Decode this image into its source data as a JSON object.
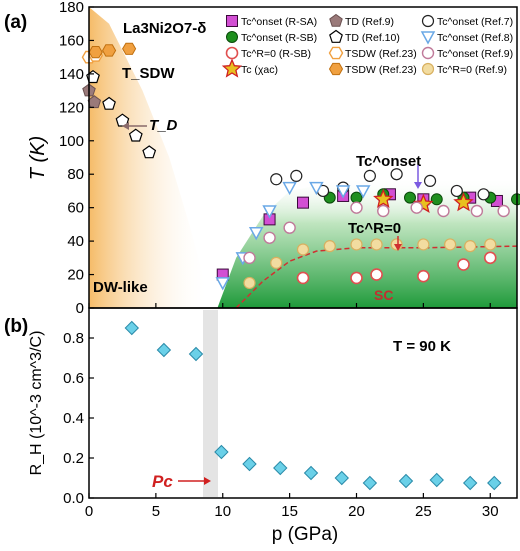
{
  "chart_data": [
    {
      "panel": "(a)",
      "type": "scatter",
      "title": "",
      "compound": "La3Ni2O7-δ",
      "xlabel": "",
      "ylabel": "T (K)",
      "xlim": [
        0,
        32
      ],
      "ylim": [
        0,
        180
      ],
      "yticks": [
        0,
        20,
        40,
        60,
        80,
        100,
        120,
        140,
        160,
        180
      ],
      "xticks": [
        0,
        5,
        10,
        15,
        20,
        25,
        30
      ],
      "legend_position": "top-right",
      "phase_labels": {
        "sdw": "T_SDW",
        "d": "T_D",
        "dw": "DW-like",
        "tc_onset": "Tc^onset",
        "tc_r0": "Tc^R=0",
        "sc": "SC"
      },
      "series": [
        {
          "name": "Tc^onset (R-SA)",
          "marker": "square",
          "color": "#d24fd3",
          "x": [
            10,
            13.5,
            16,
            19,
            22.5,
            25,
            28.5,
            30.5
          ],
          "y": [
            20,
            53,
            63,
            67,
            68,
            65,
            66,
            64
          ]
        },
        {
          "name": "Tc^onset (R-SB)",
          "marker": "dot",
          "color": "#1e8f1e",
          "x": [
            18,
            20,
            22,
            24,
            26,
            28,
            30,
            32
          ],
          "y": [
            66,
            66,
            68,
            66,
            65,
            66,
            66,
            65
          ]
        },
        {
          "name": "Tc^R=0 (R-SB)",
          "marker": "circle-red",
          "color": "#e05050",
          "x": [
            16,
            20,
            21.5,
            25,
            28,
            30
          ],
          "y": [
            18,
            18,
            20,
            19,
            26,
            30
          ]
        },
        {
          "name": "Tc (χac)",
          "marker": "star",
          "color": "#e8c020",
          "x": [
            22,
            25,
            28
          ],
          "y": [
            65,
            62,
            63
          ]
        },
        {
          "name": "TD (Ref.9)",
          "marker": "pentagon-filled",
          "color": "#9a7a7a",
          "x": [
            0,
            0.4
          ],
          "y": [
            130,
            123
          ]
        },
        {
          "name": "TD (Ref.10)",
          "marker": "pentagon-open",
          "color": "#000000",
          "x": [
            0.3,
            1.5,
            2.5,
            3.5,
            4.5
          ],
          "y": [
            138,
            122,
            112,
            103,
            93
          ]
        },
        {
          "name": "TSDW (Ref.23)",
          "marker": "hexagon-open",
          "color": "#f0a040",
          "x": [
            0,
            0.5
          ],
          "y": [
            150,
            151
          ]
        },
        {
          "name": "TSDW (Ref.23)",
          "marker": "hexagon-filled",
          "color": "#f0a040",
          "x": [
            0.5,
            1.5,
            3
          ],
          "y": [
            153,
            154,
            155
          ]
        },
        {
          "name": "Tc^onset (Ref.7)",
          "marker": "circle-open",
          "color": "#222222",
          "x": [
            14,
            15.5,
            17.5,
            19,
            21,
            23,
            25.5,
            27.5,
            29.5
          ],
          "y": [
            77,
            79,
            70,
            72,
            79,
            80,
            76,
            70,
            68
          ]
        },
        {
          "name": "Tc^onset (Ref.8)",
          "marker": "triangle-down",
          "color": "#6aa8e6",
          "x": [
            10,
            11.5,
            12.5,
            13.5,
            15,
            17,
            19,
            20.5
          ],
          "y": [
            15,
            30,
            45,
            58,
            72,
            72,
            70,
            70
          ]
        },
        {
          "name": "Tc^onset (Ref.9)",
          "marker": "circle-pink",
          "color": "#c07a9a",
          "x": [
            12,
            13.5,
            15,
            20,
            22,
            24.5,
            26.5,
            29,
            31
          ],
          "y": [
            30,
            42,
            48,
            60,
            58,
            60,
            58,
            58,
            58
          ]
        },
        {
          "name": "Tc^R=0 (Ref.9)",
          "marker": "circle-tan",
          "color": "#f2dca0",
          "x": [
            12,
            14,
            16,
            18,
            20,
            21.5,
            23,
            25,
            27,
            28.5,
            30
          ],
          "y": [
            15,
            27,
            35,
            37,
            38,
            38,
            38,
            38,
            38,
            37,
            38
          ]
        }
      ]
    },
    {
      "panel": "(b)",
      "type": "scatter",
      "title": "",
      "annotation": "T = 90 K",
      "pc_label": "Pc",
      "xlabel": "p (GPa)",
      "ylabel": "R_H (10^-3 cm^3/C)",
      "xlim": [
        0,
        32
      ],
      "ylim": [
        0,
        0.95
      ],
      "yticks": [
        0.0,
        0.2,
        0.4,
        0.6,
        0.8
      ],
      "xticks": [
        0,
        5,
        10,
        15,
        20,
        25,
        30
      ],
      "series": [
        {
          "name": "R_H",
          "marker": "diamond",
          "color": "#6ad0e8",
          "x": [
            3.2,
            5.6,
            8.0,
            9.9,
            12.0,
            14.3,
            16.6,
            18.9,
            21.0,
            23.7,
            26.0,
            28.5,
            30.3
          ],
          "y": [
            0.85,
            0.74,
            0.72,
            0.23,
            0.17,
            0.15,
            0.125,
            0.1,
            0.075,
            0.085,
            0.09,
            0.075,
            0.075
          ]
        }
      ]
    }
  ]
}
